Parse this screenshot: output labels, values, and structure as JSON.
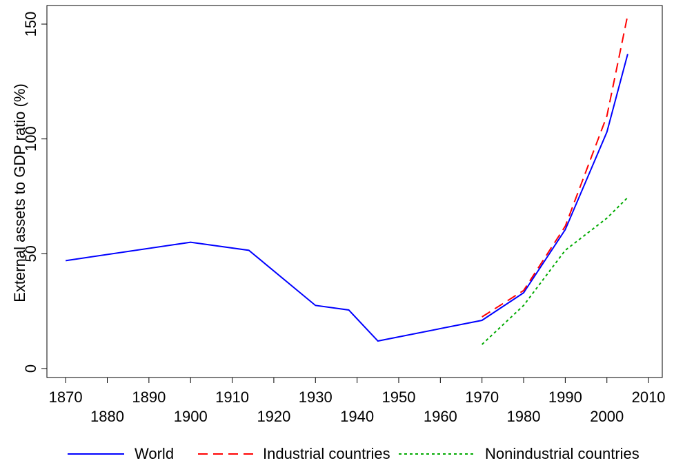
{
  "chart_data": {
    "type": "line",
    "y_label": "External assets to GDP ratio (%)",
    "xlim": [
      1865.5,
      2013.3
    ],
    "ylim": [
      -3.9,
      158.1
    ],
    "xticks": [
      1870,
      1880,
      1890,
      1900,
      1910,
      1920,
      1930,
      1940,
      1950,
      1960,
      1970,
      1980,
      1990,
      2000,
      2010
    ],
    "yticks": [
      0,
      50,
      100,
      150
    ],
    "grid": false,
    "legend": "bottom",
    "series": [
      {
        "name": "World",
        "color": "#0000ff",
        "dash": "solid",
        "x": [
          1870,
          1900,
          1914,
          1930,
          1938,
          1945,
          1970,
          1980,
          1990,
          2000,
          2005
        ],
        "values": [
          47,
          55,
          51.5,
          27.5,
          25.5,
          12,
          21,
          33,
          60.5,
          103,
          137
        ]
      },
      {
        "name": "Industrial countries",
        "color": "#ff0000",
        "dash": "dashed",
        "x": [
          1970,
          1980,
          1990,
          2000,
          2005
        ],
        "values": [
          22.5,
          34,
          62,
          110,
          154
        ]
      },
      {
        "name": "Nonindustrial countries",
        "color": "#00aa00",
        "dash": "dotted",
        "x": [
          1970,
          1980,
          1990,
          2000,
          2005
        ],
        "values": [
          10.5,
          27.5,
          51.5,
          65.5,
          74.5
        ]
      }
    ]
  }
}
